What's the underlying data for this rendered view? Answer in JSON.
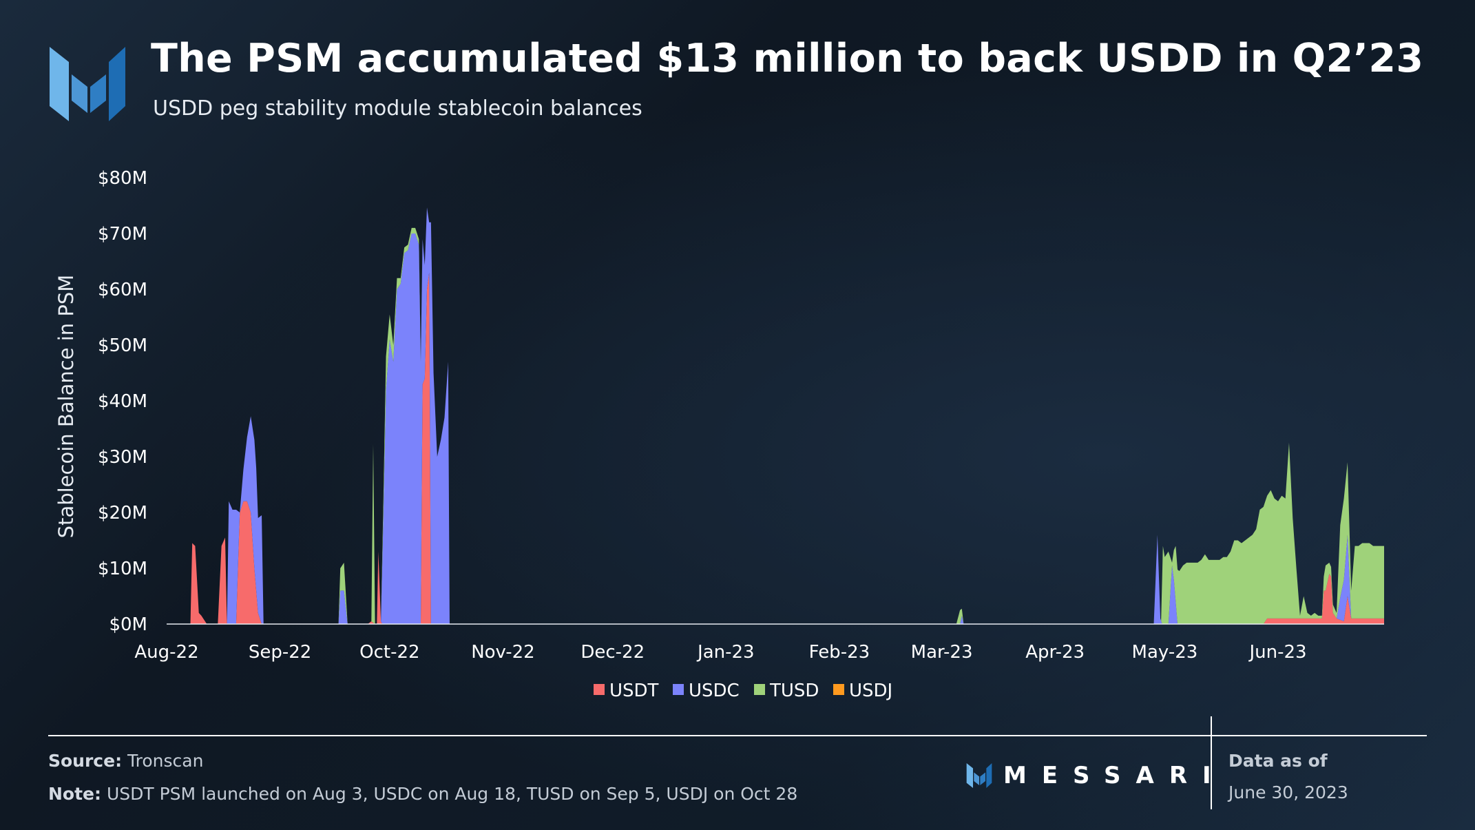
{
  "header": {
    "title": "The PSM accumulated $13 million to back USDD in Q2’23",
    "subtitle": "USDD peg stability module stablecoin balances"
  },
  "footer": {
    "source_label": "Source:",
    "source_value": "Tronscan",
    "note_label": "Note:",
    "note_value": "USDT PSM launched on Aug 3, USDC on Aug 18, TUSD on Sep 5, USDJ on Oct 28",
    "brand": "MESSARI",
    "asof_label": "Data as of",
    "asof_date": "June 30, 2023"
  },
  "colors": {
    "USDT": "#f76b6b",
    "USDC": "#7b83fb",
    "TUSD": "#9fd27a",
    "USDJ": "#ff9a1f",
    "brand_light": "#6fb6ea",
    "brand_dark": "#2f7ec4"
  },
  "chart_data": {
    "type": "area",
    "stacked": true,
    "title": "",
    "ylabel": "Stablecoin Balance in PSM",
    "xlabel": "",
    "ylim": [
      0,
      80
    ],
    "y_unit": "$M",
    "y_ticks": [
      0,
      10,
      20,
      30,
      40,
      50,
      60,
      70,
      80
    ],
    "y_tick_labels": [
      "$0M",
      "$10M",
      "$20M",
      "$30M",
      "$40M",
      "$50M",
      "$60M",
      "$70M",
      "$80M"
    ],
    "x_range_days": [
      0,
      333
    ],
    "x_ticks": [
      {
        "day": 0,
        "label": "Aug-22"
      },
      {
        "day": 31,
        "label": "Sep-22"
      },
      {
        "day": 61,
        "label": "Oct-22"
      },
      {
        "day": 92,
        "label": "Nov-22"
      },
      {
        "day": 122,
        "label": "Dec-22"
      },
      {
        "day": 153,
        "label": "Jan-23"
      },
      {
        "day": 184,
        "label": "Feb-23"
      },
      {
        "day": 212,
        "label": "Mar-23"
      },
      {
        "day": 243,
        "label": "Apr-23"
      },
      {
        "day": 273,
        "label": "May-23"
      },
      {
        "day": 304,
        "label": "Jun-23"
      }
    ],
    "legend": [
      "USDT",
      "USDC",
      "TUSD",
      "USDJ"
    ],
    "legend_position": "bottom-center",
    "series": [
      {
        "name": "USDT",
        "points": [
          [
            0,
            0
          ],
          [
            6.5,
            0
          ],
          [
            7,
            14.5
          ],
          [
            7.8,
            14
          ],
          [
            8.8,
            2
          ],
          [
            9.5,
            1.5
          ],
          [
            11,
            0
          ],
          [
            14,
            0
          ],
          [
            15,
            14
          ],
          [
            16,
            15.5
          ],
          [
            16.5,
            0
          ],
          [
            19,
            0
          ],
          [
            20,
            20
          ],
          [
            21,
            22
          ],
          [
            22,
            22
          ],
          [
            23,
            20
          ],
          [
            24,
            10
          ],
          [
            25,
            2
          ],
          [
            26,
            0
          ],
          [
            55,
            0
          ],
          [
            56,
            0.5
          ],
          [
            57,
            0
          ],
          [
            57,
            0
          ],
          [
            57.5,
            0
          ],
          [
            57.9,
            13
          ],
          [
            58.6,
            0.5
          ],
          [
            59,
            0
          ],
          [
            69.5,
            0
          ],
          [
            70,
            43
          ],
          [
            70.6,
            44
          ],
          [
            71.2,
            60
          ],
          [
            71.8,
            63
          ],
          [
            72.3,
            0
          ],
          [
            300,
            0
          ],
          [
            301,
            1
          ],
          [
            316,
            1
          ],
          [
            316.5,
            6
          ],
          [
            317,
            6
          ],
          [
            318,
            9
          ],
          [
            318.5,
            8.5
          ],
          [
            319,
            2
          ],
          [
            320,
            1
          ],
          [
            322,
            0.5
          ],
          [
            323,
            5
          ],
          [
            324,
            1
          ],
          [
            333,
            1
          ]
        ]
      },
      {
        "name": "USDC",
        "points": [
          [
            0,
            0
          ],
          [
            16.5,
            0
          ],
          [
            17,
            22
          ],
          [
            18,
            20.5
          ],
          [
            19,
            20.5
          ],
          [
            20,
            0
          ],
          [
            24,
            23
          ],
          [
            24.5,
            22
          ],
          [
            25,
            17
          ],
          [
            26,
            19.5
          ],
          [
            26.5,
            0
          ],
          [
            47,
            0
          ],
          [
            47.5,
            6
          ],
          [
            48.5,
            6
          ],
          [
            49.5,
            0
          ],
          [
            58.6,
            0
          ],
          [
            59.3,
            20
          ],
          [
            60,
            42
          ],
          [
            61,
            51
          ],
          [
            62,
            47
          ],
          [
            63,
            60
          ],
          [
            64,
            61
          ],
          [
            65,
            66.5
          ],
          [
            66,
            67
          ],
          [
            67,
            70
          ],
          [
            68,
            70
          ],
          [
            69,
            68
          ],
          [
            70,
            26
          ],
          [
            71.8,
            9
          ],
          [
            72.3,
            72
          ],
          [
            73,
            45
          ],
          [
            74,
            30
          ],
          [
            75,
            33
          ],
          [
            76,
            37
          ],
          [
            77,
            47
          ],
          [
            77.4,
            0
          ],
          [
            217,
            0
          ],
          [
            217.5,
            1.5
          ],
          [
            218,
            0
          ],
          [
            270,
            0
          ],
          [
            271,
            16
          ],
          [
            271.8,
            1
          ],
          [
            272.3,
            0
          ],
          [
            274,
            0
          ],
          [
            275,
            10.5
          ],
          [
            275.5,
            8
          ],
          [
            276.5,
            0
          ],
          [
            316,
            0
          ],
          [
            318,
            0
          ],
          [
            320,
            0
          ],
          [
            321,
            4
          ],
          [
            322,
            7.5
          ],
          [
            323,
            11
          ],
          [
            324,
            0
          ],
          [
            333,
            0
          ]
        ]
      },
      {
        "name": "TUSD",
        "points": [
          [
            0,
            0
          ],
          [
            47,
            0
          ],
          [
            47.5,
            4
          ],
          [
            48.5,
            5
          ],
          [
            49.5,
            0
          ],
          [
            56,
            0
          ],
          [
            56.5,
            32
          ],
          [
            57,
            0
          ],
          [
            58.6,
            0
          ],
          [
            60,
            6
          ],
          [
            62,
            3
          ],
          [
            63,
            2
          ],
          [
            64,
            1
          ],
          [
            65,
            1
          ],
          [
            66,
            1
          ],
          [
            67,
            1
          ],
          [
            68,
            1
          ],
          [
            69,
            1
          ],
          [
            70,
            0
          ],
          [
            216,
            0
          ],
          [
            217,
            2.5
          ],
          [
            218,
            0
          ],
          [
            272,
            0
          ],
          [
            272.5,
            14
          ],
          [
            273,
            12
          ],
          [
            274,
            13
          ],
          [
            275,
            0.5
          ],
          [
            276,
            10
          ],
          [
            277,
            9.5
          ],
          [
            278,
            10.5
          ],
          [
            279,
            11
          ],
          [
            280,
            11
          ],
          [
            281,
            11
          ],
          [
            282,
            11
          ],
          [
            283,
            11.5
          ],
          [
            284,
            12.5
          ],
          [
            285,
            11.5
          ],
          [
            286,
            11.5
          ],
          [
            287,
            11.5
          ],
          [
            288,
            11.5
          ],
          [
            289,
            12
          ],
          [
            290,
            12
          ],
          [
            291,
            13
          ],
          [
            292,
            15
          ],
          [
            293,
            15
          ],
          [
            294,
            14.5
          ],
          [
            295,
            15
          ],
          [
            296,
            15.5
          ],
          [
            297,
            16
          ],
          [
            298,
            17
          ],
          [
            299,
            20.5
          ],
          [
            300,
            21
          ],
          [
            301,
            22
          ],
          [
            302,
            23
          ],
          [
            303,
            21.5
          ],
          [
            304,
            21
          ],
          [
            305,
            22
          ],
          [
            306,
            21.5
          ],
          [
            307,
            31.5
          ],
          [
            308,
            18
          ],
          [
            309,
            9
          ],
          [
            310,
            0.5
          ],
          [
            311,
            4
          ],
          [
            312,
            1
          ],
          [
            313,
            0.5
          ],
          [
            314,
            1
          ],
          [
            315,
            0.5
          ],
          [
            316,
            0.5
          ],
          [
            317,
            4.5
          ],
          [
            318,
            2
          ],
          [
            319,
            1.5
          ],
          [
            320,
            1
          ],
          [
            321,
            13
          ],
          [
            322,
            14.5
          ],
          [
            323,
            13
          ],
          [
            324,
            5
          ],
          [
            325,
            13
          ],
          [
            326,
            13
          ],
          [
            327,
            13.5
          ],
          [
            328,
            13.5
          ],
          [
            329,
            13.5
          ],
          [
            330,
            13
          ],
          [
            331,
            13
          ],
          [
            332,
            13
          ],
          [
            333,
            13
          ]
        ]
      },
      {
        "name": "USDJ",
        "points": [
          [
            0,
            0
          ],
          [
            333,
            0
          ]
        ]
      }
    ]
  }
}
